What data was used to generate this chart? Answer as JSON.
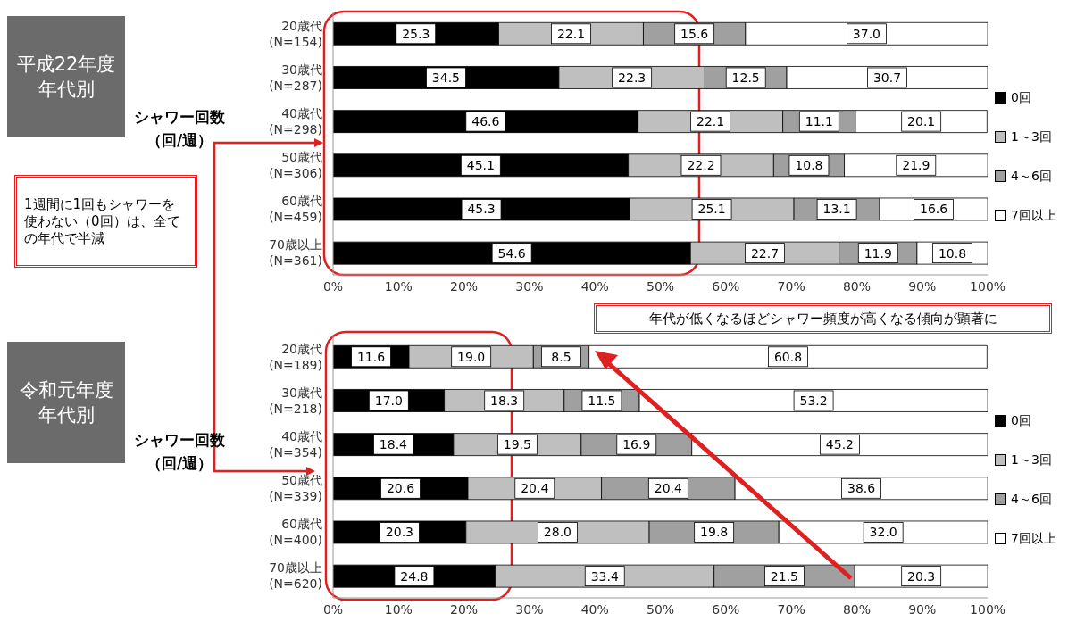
{
  "chart_data": [
    {
      "type": "bar",
      "orientation": "horizontal",
      "stacked": true,
      "ylabel": "シャワー回数（回/週）",
      "annotations": [
        "平成22年度年代別",
        "1週間に1回もシャワーを使わない（0回）は、全ての年代で半減"
      ],
      "categories": [
        "20歳代\n(N=154)",
        "30歳代\n(N=287)",
        "40歳代\n(N=298)",
        "50歳代\n(N=306)",
        "60歳代\n(N=459)",
        "70歳以上\n(N=361)"
      ],
      "xlim": [
        0,
        100
      ],
      "xticks": [
        {
          "value": 0,
          "label": "0%"
        },
        {
          "value": 10,
          "label": "10%"
        },
        {
          "value": 20,
          "label": "20%"
        },
        {
          "value": 30,
          "label": "30%"
        },
        {
          "value": 40,
          "label": "40%"
        },
        {
          "value": 50,
          "label": "50%"
        },
        {
          "value": 60,
          "label": "60%"
        },
        {
          "value": 70,
          "label": "70%"
        },
        {
          "value": 80,
          "label": "80%"
        },
        {
          "value": 90,
          "label": "90%"
        },
        {
          "value": 100,
          "label": "100%"
        }
      ],
      "legend": "right",
      "series": [
        {
          "name": "0回",
          "color": "#000000",
          "values": [
            25.3,
            34.5,
            46.6,
            45.1,
            45.3,
            54.6
          ],
          "value_labels": [
            "25.3",
            "34.5",
            "46.6",
            "45.1",
            "45.3",
            "54.6"
          ]
        },
        {
          "name": "1～3回",
          "color": "#bfbfbf",
          "values": [
            22.1,
            22.3,
            22.1,
            22.2,
            25.1,
            22.7
          ],
          "value_labels": [
            "22.1",
            "22.3",
            "22.1",
            "22.2",
            "25.1",
            "22.7"
          ]
        },
        {
          "name": "4～6回",
          "color": "#a0a0a0",
          "values": [
            15.6,
            12.5,
            11.1,
            10.8,
            13.1,
            11.9
          ],
          "value_labels": [
            "15.6",
            "12.5",
            "11.1",
            "10.8",
            "13.1",
            "11.9"
          ]
        },
        {
          "name": "7回以上",
          "color": "#ffffff",
          "values": [
            37.0,
            30.7,
            20.1,
            21.9,
            16.6,
            10.8
          ],
          "value_labels": [
            "37.0",
            "30.7",
            "20.1",
            "21.9",
            "16.6",
            "10.8"
          ]
        }
      ]
    },
    {
      "type": "bar",
      "orientation": "horizontal",
      "stacked": true,
      "ylabel": "シャワー回数（回/週）",
      "annotations": [
        "令和元年度年代別",
        "年代が低くなるほどシャワー頻度が高くなる傾向が顕著に"
      ],
      "categories": [
        "20歳代\n(N=189)",
        "30歳代\n(N=218)",
        "40歳代\n(N=354)",
        "50歳代\n(N=339)",
        "60歳代\n(N=400)",
        "70歳以上\n(N=620)"
      ],
      "xlim": [
        0,
        100
      ],
      "xticks": [
        {
          "value": 0,
          "label": "0%"
        },
        {
          "value": 10,
          "label": "10%"
        },
        {
          "value": 20,
          "label": "20%"
        },
        {
          "value": 30,
          "label": "30%"
        },
        {
          "value": 40,
          "label": "40%"
        },
        {
          "value": 50,
          "label": "50%"
        },
        {
          "value": 60,
          "label": "60%"
        },
        {
          "value": 70,
          "label": "70%"
        },
        {
          "value": 80,
          "label": "80%"
        },
        {
          "value": 90,
          "label": "90%"
        },
        {
          "value": 100,
          "label": "100%"
        }
      ],
      "legend": "right",
      "series": [
        {
          "name": "0回",
          "color": "#000000",
          "values": [
            11.6,
            17.0,
            18.4,
            20.6,
            20.3,
            24.8
          ],
          "value_labels": [
            "11.6",
            "17.0",
            "18.4",
            "20.6",
            "20.3",
            "24.8"
          ]
        },
        {
          "name": "1～3回",
          "color": "#bfbfbf",
          "values": [
            19.0,
            18.3,
            19.5,
            20.4,
            28.0,
            33.4
          ],
          "value_labels": [
            "19.0",
            "18.3",
            "19.5",
            "20.4",
            "28.0",
            "33.4"
          ]
        },
        {
          "name": "4～6回",
          "color": "#a0a0a0",
          "values": [
            8.5,
            11.5,
            16.9,
            20.4,
            19.8,
            21.5
          ],
          "value_labels": [
            "8.5",
            "11.5",
            "16.9",
            "20.4",
            "19.8",
            "21.5"
          ]
        },
        {
          "name": "7回以上",
          "color": "#ffffff",
          "values": [
            60.8,
            53.2,
            45.2,
            38.6,
            32.0,
            20.3
          ],
          "value_labels": [
            "60.8",
            "53.2",
            "45.2",
            "38.6",
            "32.0",
            "20.3"
          ]
        }
      ]
    }
  ]
}
